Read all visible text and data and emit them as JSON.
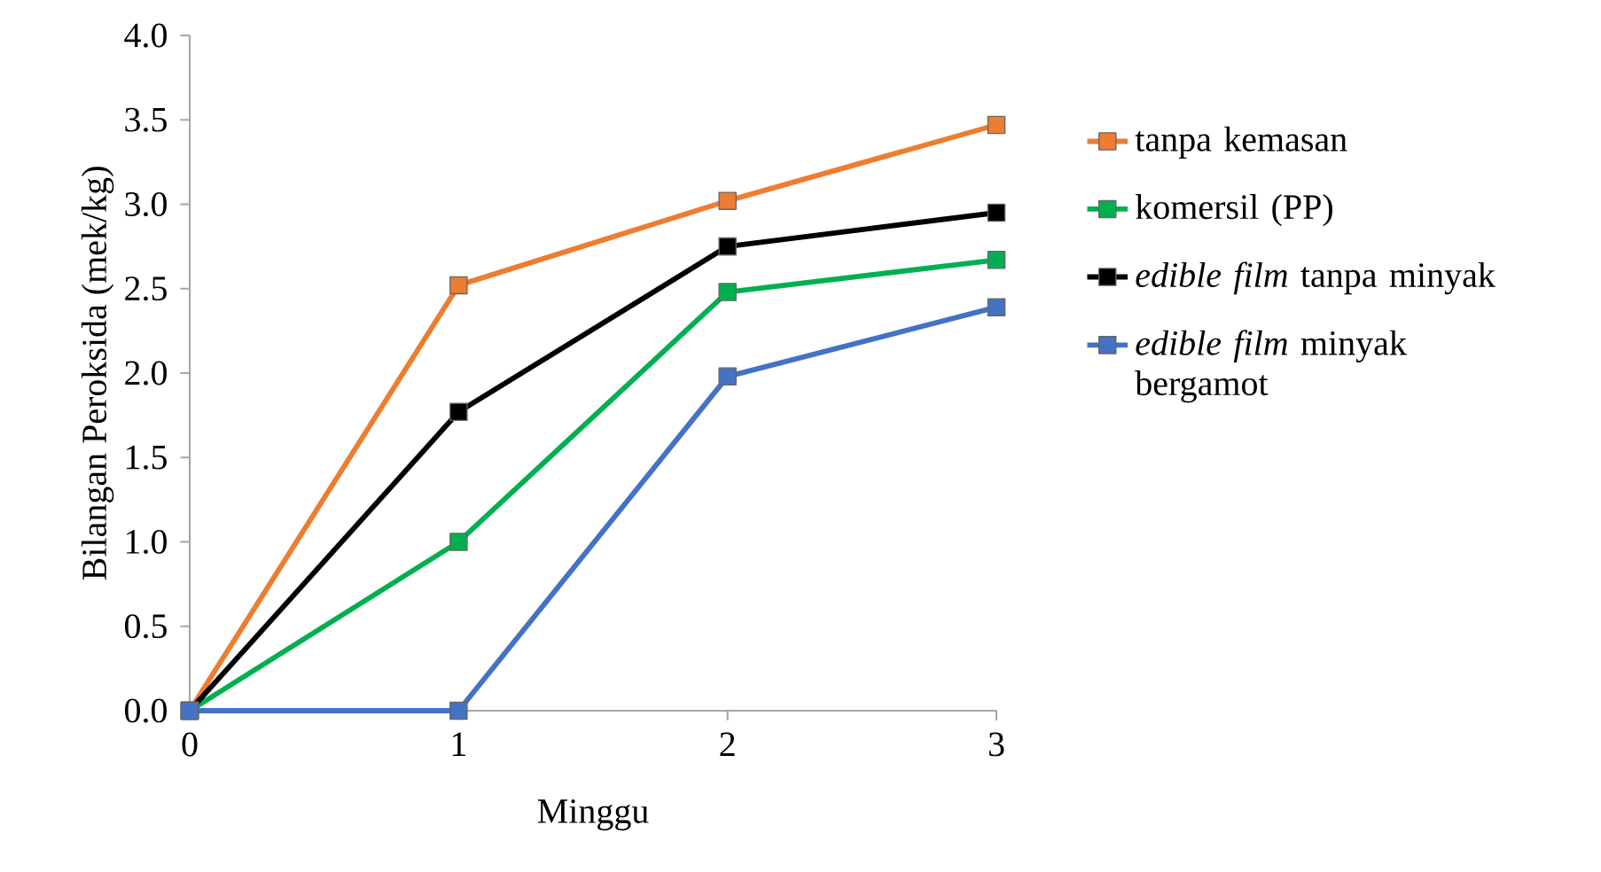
{
  "chart_data": {
    "type": "line",
    "xlabel": "Minggu",
    "ylabel": "Bilangan Peroksida (mek/kg)",
    "x": [
      0,
      1,
      2,
      3
    ],
    "series": [
      {
        "name": "tanpa kemasan",
        "color": "#ed7d31",
        "values": [
          0,
          2.52,
          3.02,
          3.47
        ]
      },
      {
        "name": "komersil (PP)",
        "color": "#00b050",
        "values": [
          0,
          1.0,
          2.48,
          2.67
        ]
      },
      {
        "name": "*edible film* tanpa minyak",
        "color": "#000000",
        "values": [
          0,
          1.77,
          2.75,
          2.95
        ]
      },
      {
        "name": "*edible film* minyak bergamot",
        "color": "#4472c4",
        "values": [
          0,
          0,
          1.98,
          2.39
        ]
      }
    ],
    "xlim": [
      0,
      3
    ],
    "ylim": [
      0,
      4
    ],
    "xticks": [
      0,
      1,
      2,
      3
    ],
    "yticks": [
      {
        "value": 0,
        "label": "0.0"
      },
      {
        "value": 0.5,
        "label": "0.5"
      },
      {
        "value": 1,
        "label": "1.0"
      },
      {
        "value": 1.5,
        "label": "1.5"
      },
      {
        "value": 2,
        "label": "2.0"
      },
      {
        "value": 2.5,
        "label": "2.5"
      },
      {
        "value": 3,
        "label": "3.0"
      },
      {
        "value": 3.5,
        "label": "3.5"
      },
      {
        "value": 4,
        "label": "4.0"
      }
    ],
    "legend": "right",
    "marker": "square",
    "line_style": "solid",
    "grid": false
  }
}
